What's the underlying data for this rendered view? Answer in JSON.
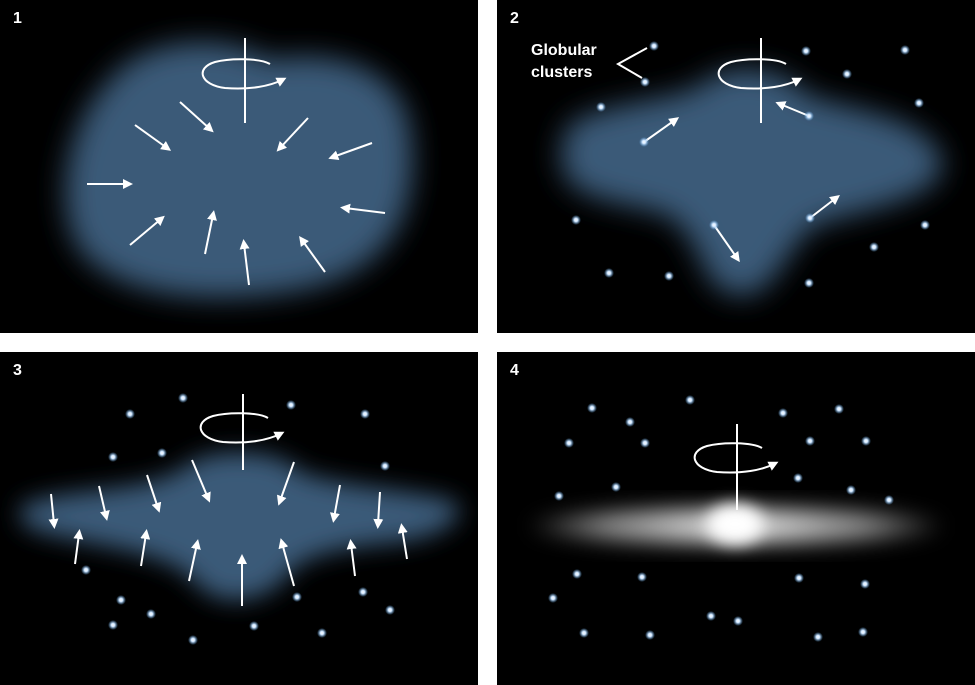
{
  "panels": [
    {
      "number": "1"
    },
    {
      "number": "2",
      "label_line1": "Globular",
      "label_line2": "clusters"
    },
    {
      "number": "3"
    },
    {
      "number": "4"
    }
  ],
  "colors": {
    "background": "#000000",
    "gas_cloud": "#3a5a78",
    "star_cluster": "#a8d4ff",
    "arrow": "#ffffff",
    "bulge": "#ffffff"
  }
}
